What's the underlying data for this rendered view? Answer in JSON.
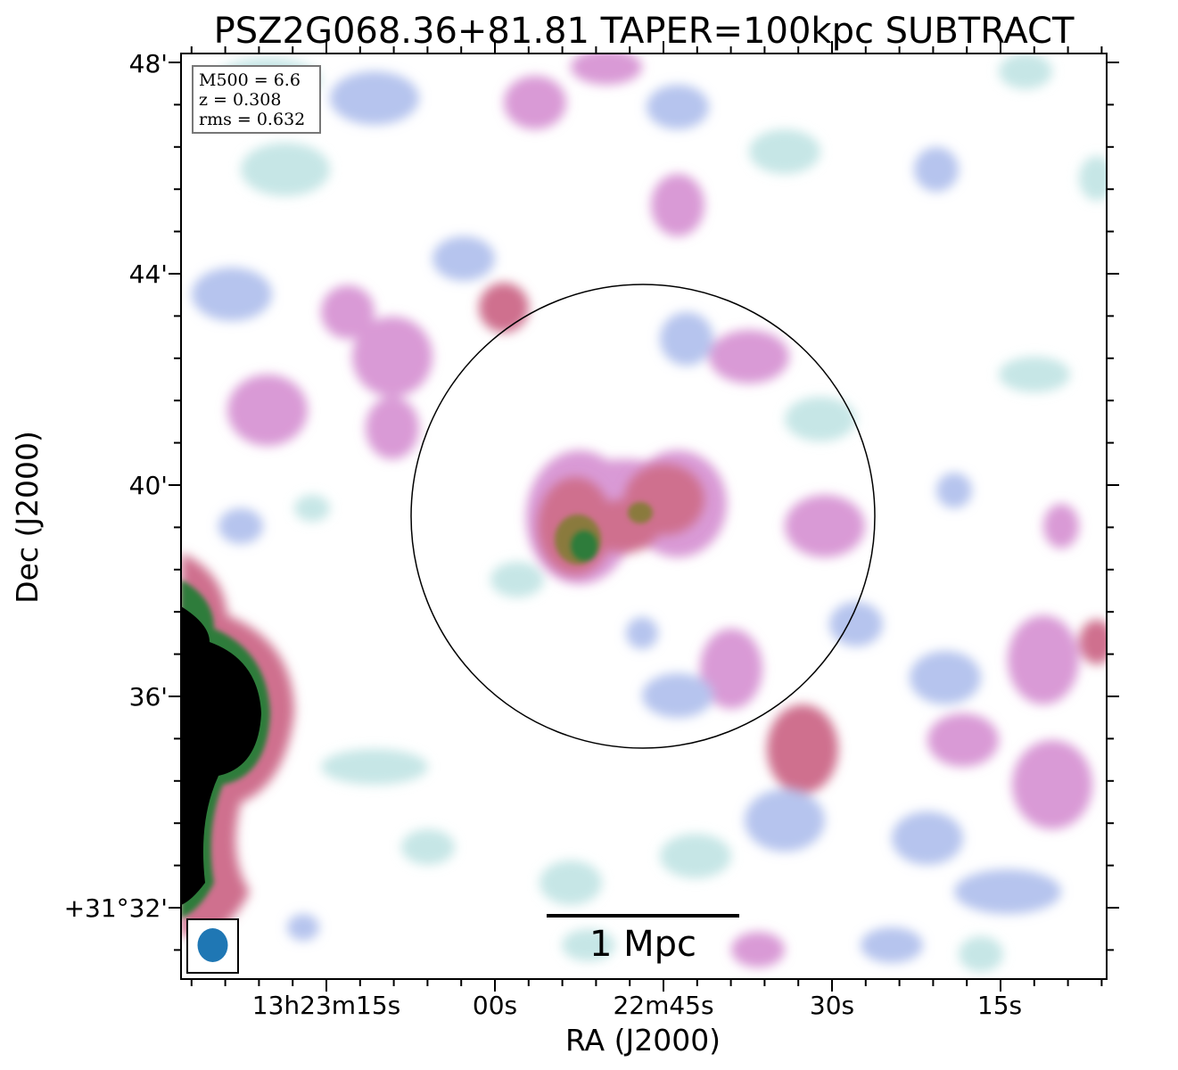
{
  "chart_data": {
    "type": "heatmap",
    "title": "PSZ2G068.36+81.81 TAPER=100kpc SUBTRACT",
    "xlabel": "RA (J2000)",
    "ylabel": "Dec (J2000)",
    "x_ticks": [
      "13h23m15s",
      "00s",
      "22m45s",
      "30s",
      "15s"
    ],
    "y_ticks": [
      "48'",
      "44'",
      "40'",
      "36'",
      "+31°32'"
    ],
    "info": {
      "line1": "M500 = 6.6",
      "line2": "z = 0.308",
      "line3": "rms = 0.632"
    },
    "scalebar_label": "1 Mpc",
    "beam_color": "#1f77b4",
    "colormap": [
      "#ffffff",
      "#c6e6e6",
      "#b6c4ee",
      "#d99ad6",
      "#cf6f8e",
      "#8a7a3c",
      "#2f7b3a",
      "#000000"
    ],
    "features": [
      "central radio halo emission (pink with green core)",
      "bright extended source at lower-left edge (black core)",
      "noise blobs scattered across the field",
      "black circle marking cluster region"
    ]
  }
}
